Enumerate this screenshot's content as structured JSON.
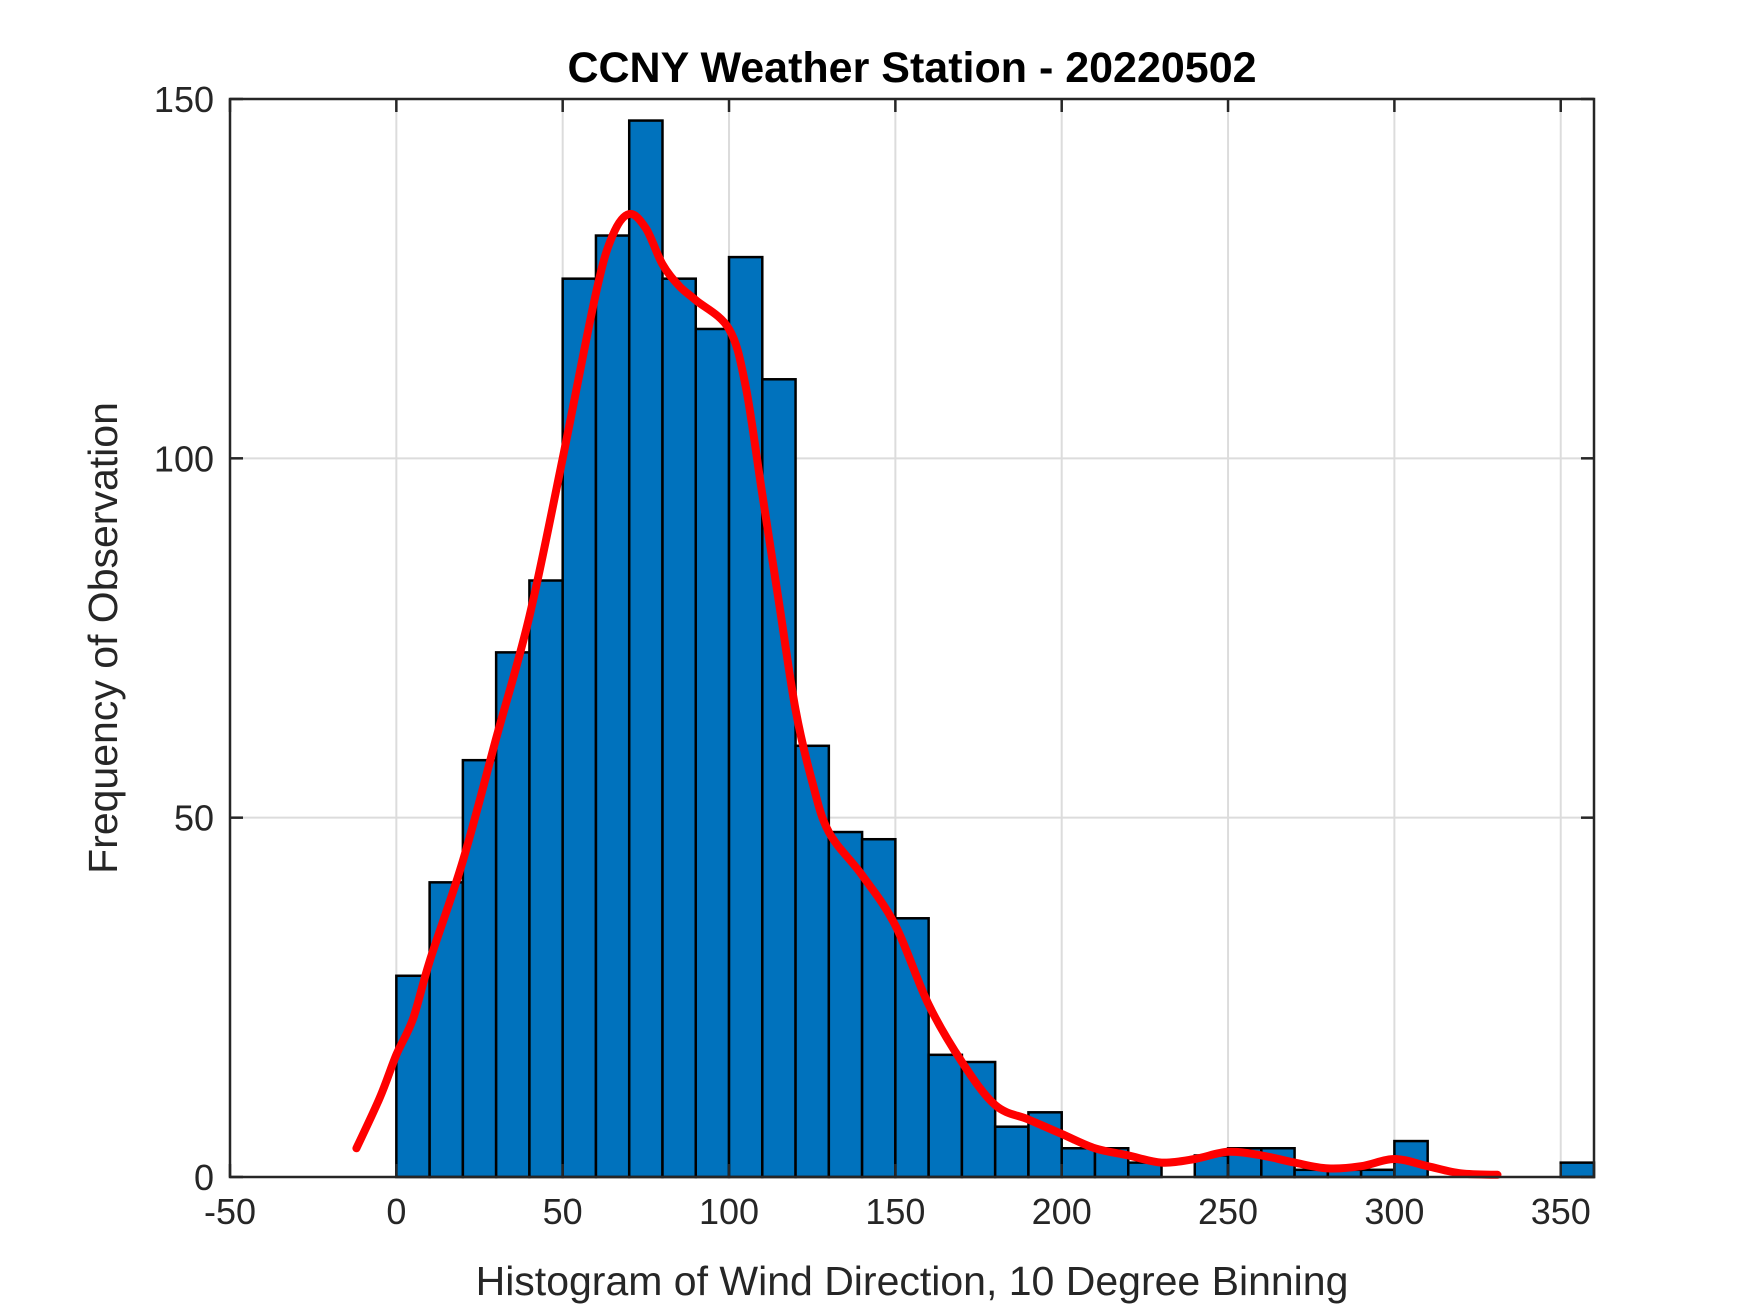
{
  "chart_data": {
    "type": "bar",
    "title": "CCNY Weather Station - 20220502",
    "xlabel": "Histogram of Wind Direction, 10 Degree Binning",
    "ylabel": "Frequency of Observation",
    "xlim": [
      -50,
      360
    ],
    "ylim": [
      0,
      150
    ],
    "xticks": [
      -50,
      0,
      50,
      100,
      150,
      200,
      250,
      300,
      350
    ],
    "yticks": [
      0,
      50,
      100,
      150
    ],
    "grid": true,
    "bin_width": 10,
    "bin_edges_start": 0,
    "values": [
      28,
      41,
      58,
      73,
      83,
      125,
      131,
      147,
      125,
      118,
      128,
      111,
      60,
      48,
      47,
      36,
      17,
      16,
      7,
      9,
      4,
      4,
      2,
      0,
      3,
      4,
      4,
      1,
      1,
      1,
      5,
      0,
      0,
      0,
      0,
      2
    ],
    "bar_color": "#0072BD",
    "fit_curve": {
      "color": "#FF0000",
      "x": [
        -12,
        -5,
        0,
        5,
        10,
        20,
        30,
        40,
        50,
        60,
        65,
        70,
        75,
        80,
        85,
        90,
        100,
        105,
        110,
        115,
        120,
        125,
        130,
        140,
        150,
        160,
        170,
        180,
        190,
        200,
        210,
        220,
        230,
        240,
        250,
        260,
        270,
        280,
        290,
        300,
        310,
        320,
        331
      ],
      "y": [
        4,
        11,
        17,
        22,
        30,
        44,
        61,
        78,
        100,
        123,
        131,
        134,
        132,
        127,
        124,
        122,
        118,
        110,
        95,
        80,
        65,
        55,
        48,
        42,
        35,
        24,
        16,
        10,
        8,
        6,
        4,
        3,
        2,
        2.5,
        3.5,
        3,
        2,
        1.2,
        1.5,
        2.5,
        1.5,
        0.5,
        0.3
      ]
    }
  }
}
